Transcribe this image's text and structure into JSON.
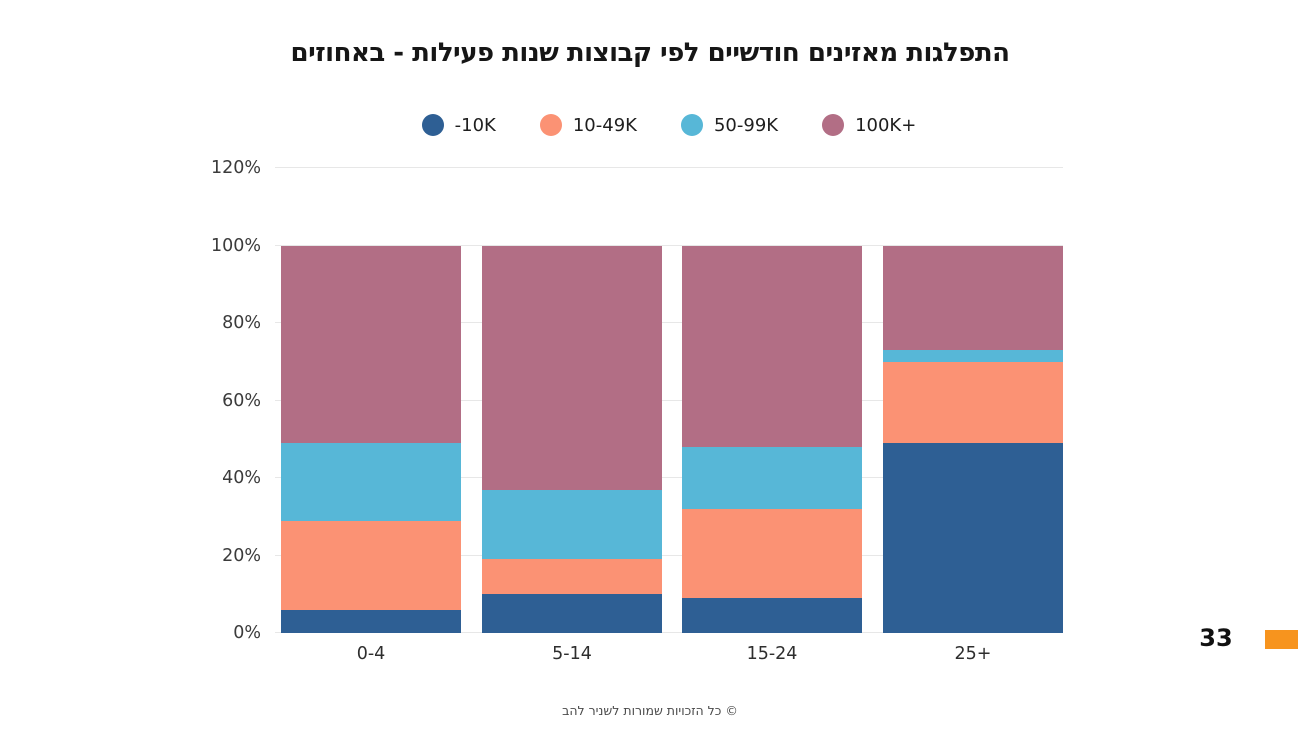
{
  "chart_data": {
    "type": "bar",
    "subtype": "stacked-100-percent",
    "title": "התפלגות מאזינים חודשיים לפי קבוצות שנות פעילות - באחוזים",
    "categories": [
      "0-4",
      "5-14",
      "15-24",
      "25+"
    ],
    "series": [
      {
        "name": "-10K",
        "color": "#2e5f94",
        "values": [
          6,
          10,
          9,
          49
        ]
      },
      {
        "name": "10-49K",
        "color": "#fb9274",
        "values": [
          23,
          9,
          23,
          21
        ]
      },
      {
        "name": "50-99K",
        "color": "#57b7d7",
        "values": [
          20,
          18,
          16,
          3
        ]
      },
      {
        "name": "100K+",
        "color": "#b26e85",
        "values": [
          51,
          63,
          52,
          27
        ]
      }
    ],
    "y_ticks": [
      "0%",
      "20%",
      "40%",
      "60%",
      "80%",
      "100%",
      "120%"
    ],
    "ylim": [
      0,
      120
    ],
    "grid": true,
    "legend_position": "top",
    "xlabel": "",
    "ylabel": ""
  },
  "footer": {
    "text": "© כל הזכויות שמורות לשניר להב"
  },
  "page_number": "33",
  "accent_color": "#f7941e"
}
